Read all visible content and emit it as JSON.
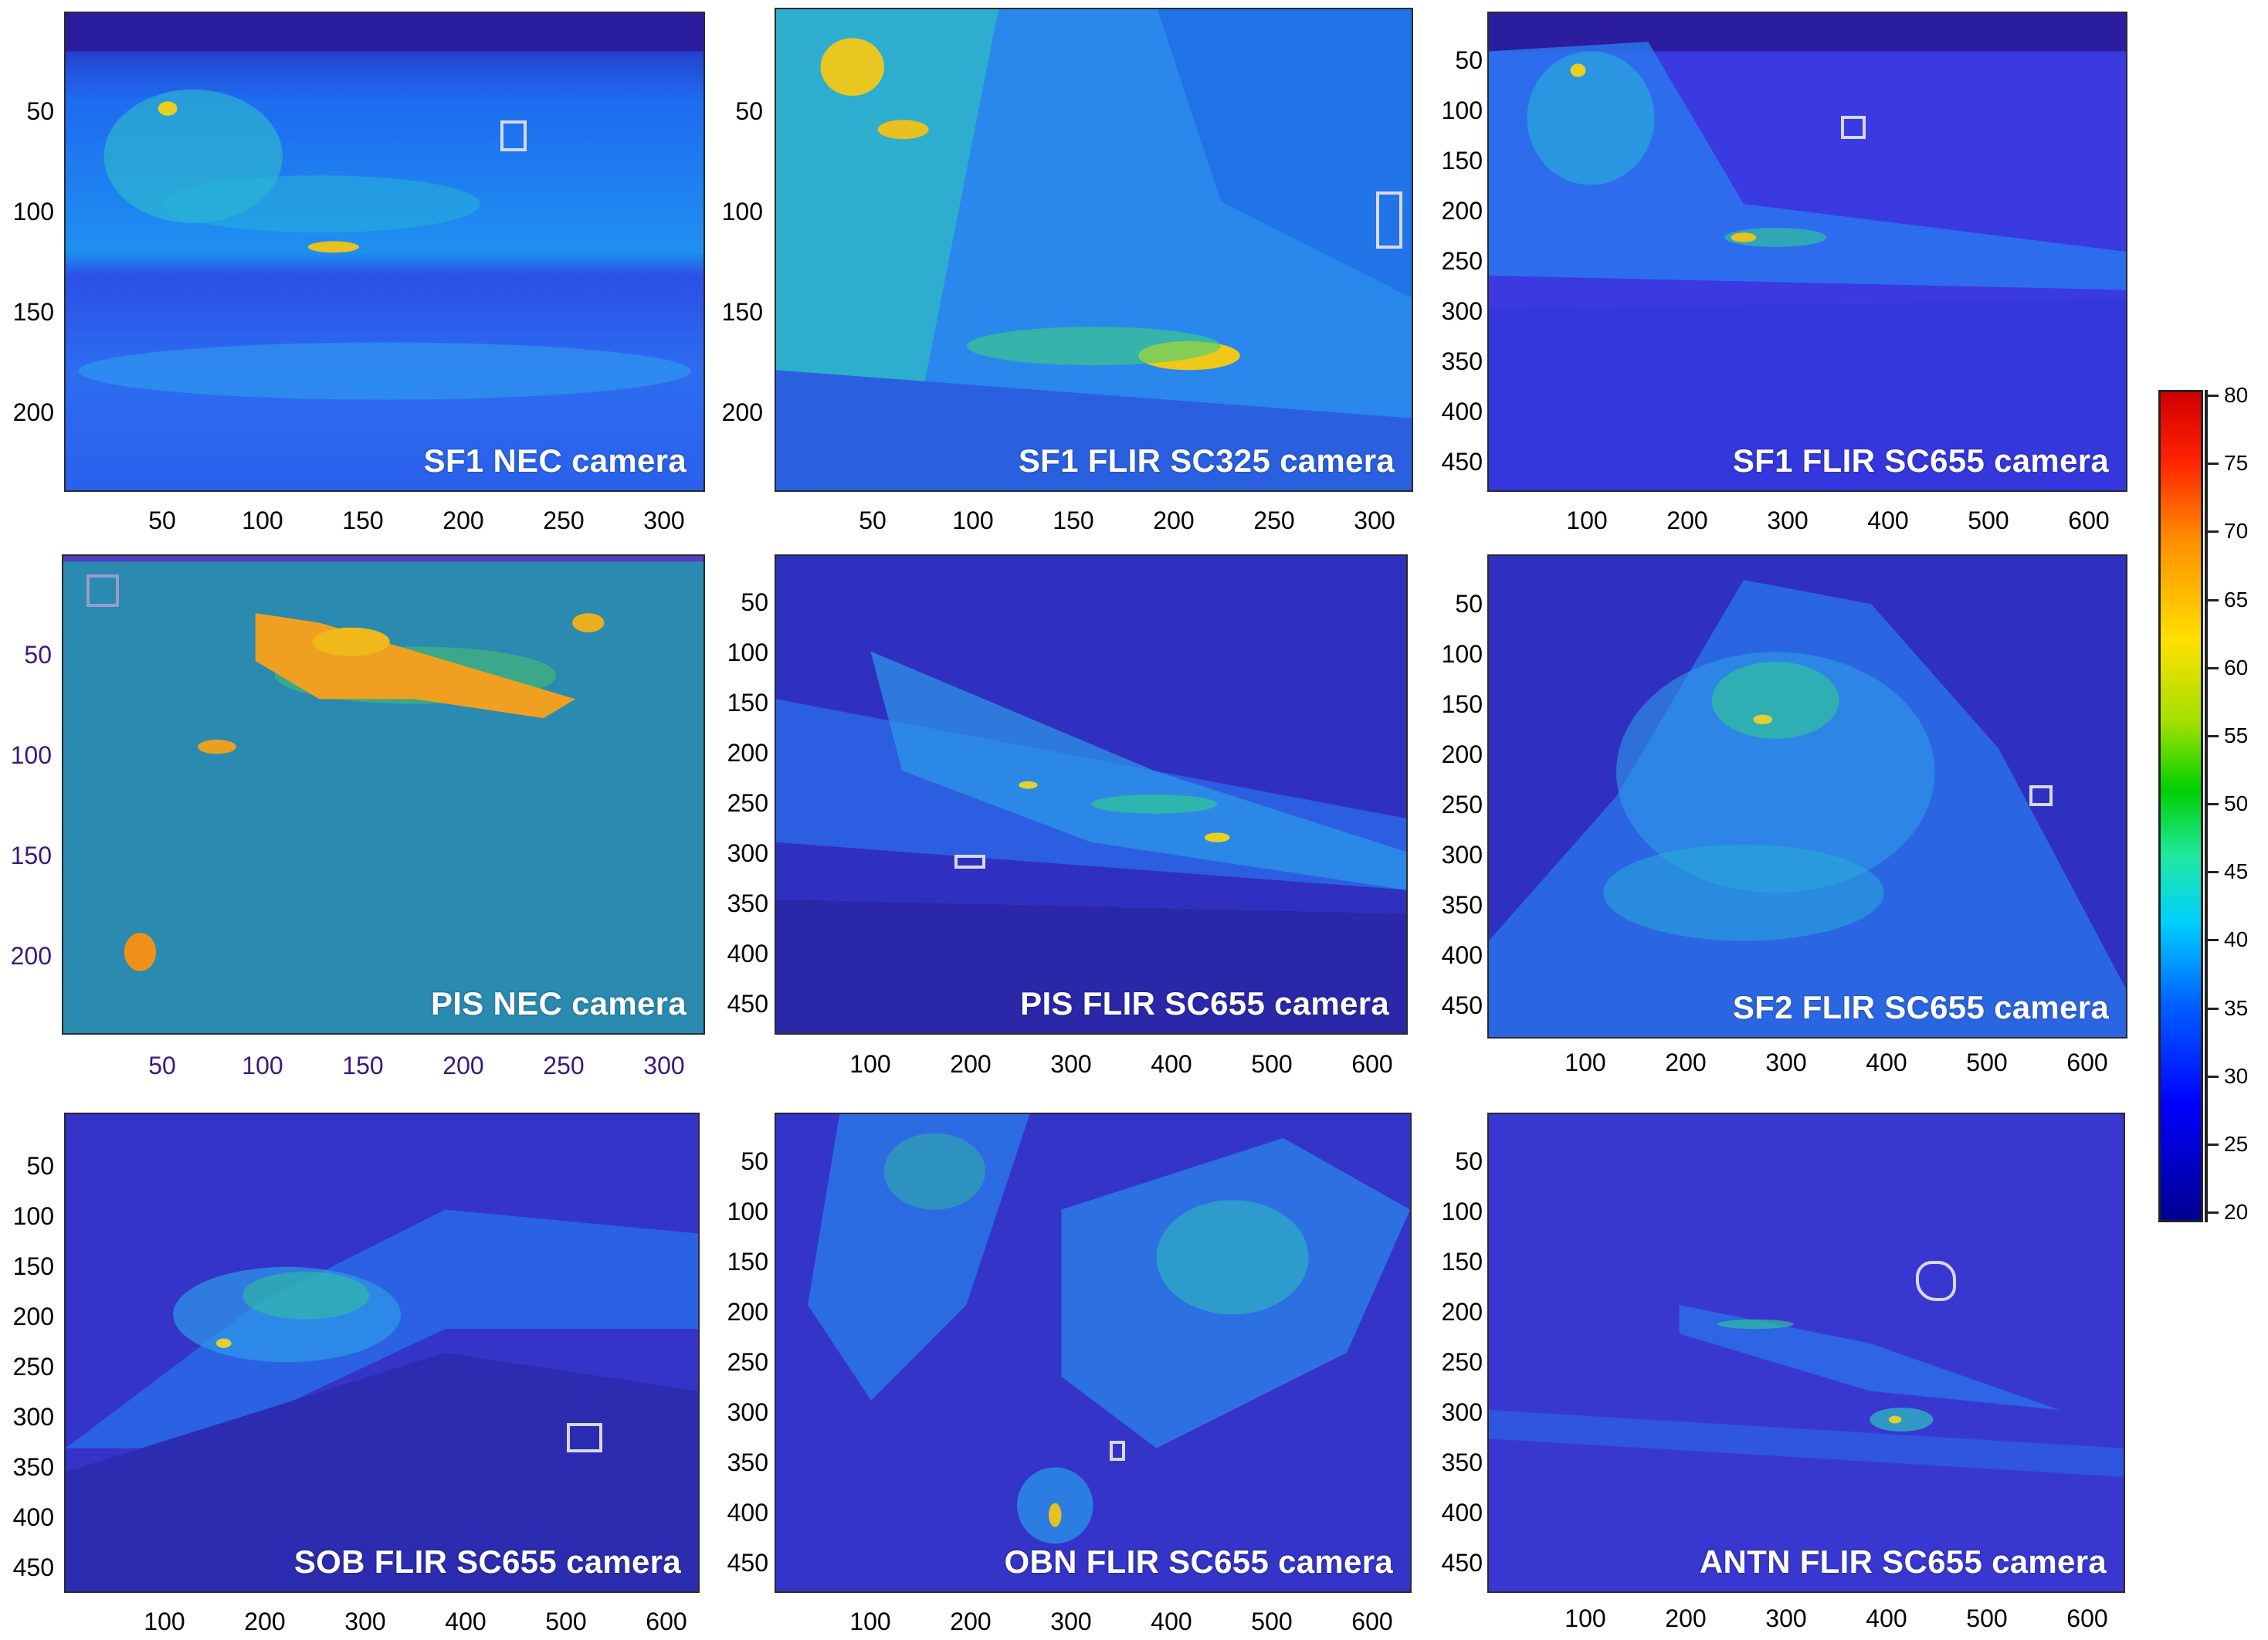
{
  "panels": [
    {
      "label": "SF1 NEC camera",
      "yticks": [
        "50",
        "100",
        "150",
        "200"
      ],
      "xticks": [
        "50",
        "100",
        "150",
        "200",
        "250",
        "300"
      ]
    },
    {
      "label": "SF1 FLIR SC325 camera",
      "yticks": [
        "50",
        "100",
        "150",
        "200"
      ],
      "xticks": [
        "50",
        "100",
        "150",
        "200",
        "250",
        "300"
      ]
    },
    {
      "label": "SF1 FLIR SC655 camera",
      "yticks": [
        "50",
        "100",
        "150",
        "200",
        "250",
        "300",
        "350",
        "400",
        "450"
      ],
      "xticks": [
        "100",
        "200",
        "300",
        "400",
        "500",
        "600"
      ]
    },
    {
      "label": "PIS NEC camera",
      "yticks": [
        "50",
        "100",
        "150",
        "200"
      ],
      "xticks": [
        "50",
        "100",
        "150",
        "200",
        "250",
        "300"
      ]
    },
    {
      "label": "PIS FLIR SC655 camera",
      "yticks": [
        "50",
        "100",
        "150",
        "200",
        "250",
        "300",
        "350",
        "400",
        "450"
      ],
      "xticks": [
        "100",
        "200",
        "300",
        "400",
        "500",
        "600"
      ]
    },
    {
      "label": "SF2 FLIR SC655 camera",
      "yticks": [
        "50",
        "100",
        "150",
        "200",
        "250",
        "300",
        "350",
        "400",
        "450"
      ],
      "xticks": [
        "100",
        "200",
        "300",
        "400",
        "500",
        "600"
      ]
    },
    {
      "label": "SOB FLIR SC655 camera",
      "yticks": [
        "50",
        "100",
        "150",
        "200",
        "250",
        "300",
        "350",
        "400",
        "450"
      ],
      "xticks": [
        "100",
        "200",
        "300",
        "400",
        "500",
        "600"
      ]
    },
    {
      "label": "OBN FLIR SC655 camera",
      "yticks": [
        "50",
        "100",
        "150",
        "200",
        "250",
        "300",
        "350",
        "400",
        "450"
      ],
      "xticks": [
        "100",
        "200",
        "300",
        "400",
        "500",
        "600"
      ]
    },
    {
      "label": "ANTN FLIR SC655 camera",
      "yticks": [
        "50",
        "100",
        "150",
        "200",
        "250",
        "300",
        "350",
        "400",
        "450"
      ],
      "xticks": [
        "100",
        "200",
        "300",
        "400",
        "500",
        "600"
      ]
    }
  ],
  "colorbar": {
    "ticks": [
      "80",
      "75",
      "70",
      "65",
      "60",
      "55",
      "50",
      "45",
      "40",
      "35",
      "30",
      "25",
      "20"
    ],
    "min": 20,
    "max": 80,
    "colors": [
      "#00008f",
      "#0000ff",
      "#0060ff",
      "#00d0ff",
      "#00d000",
      "#ffe000",
      "#ff9000",
      "#d00000"
    ]
  }
}
